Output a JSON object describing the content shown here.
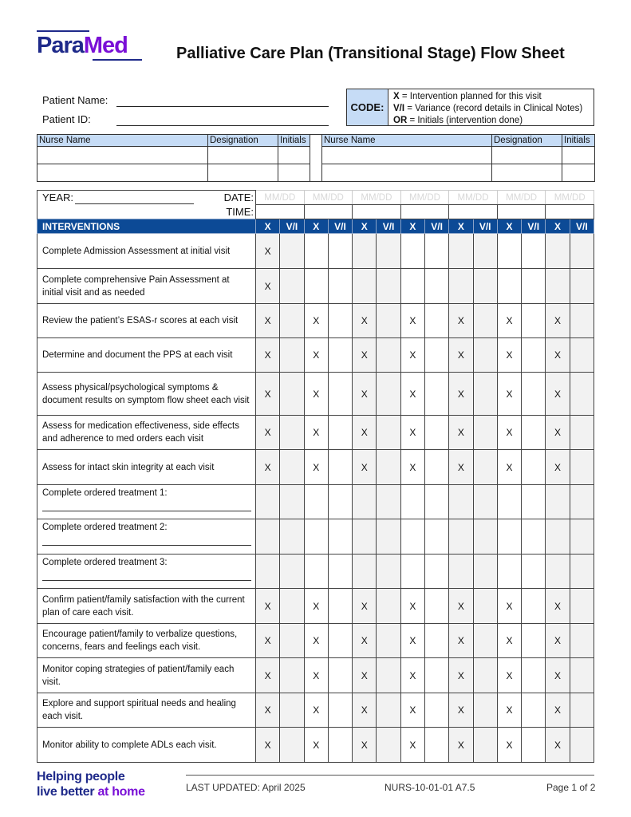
{
  "logo": {
    "part1": "Para",
    "part2": "Med"
  },
  "title": "Palliative Care Plan (Transitional Stage) Flow Sheet",
  "patient": {
    "name_label": "Patient Name:",
    "id_label": "Patient ID:"
  },
  "code": {
    "label": "CODE:",
    "lines": [
      {
        "key": "X",
        "text": " = Intervention planned for this visit"
      },
      {
        "key": "V/I",
        "text": " = Variance (record details in Clinical Notes)"
      },
      {
        "key": "OR",
        "text": " = Initials (intervention done)"
      }
    ]
  },
  "nurse_table": {
    "headers": [
      "Nurse Name",
      "Designation",
      "Initials"
    ]
  },
  "main": {
    "year_label": "YEAR:",
    "date_label": "DATE:",
    "time_label": "TIME:",
    "date_placeholder": "MM/DD",
    "interventions_label": "INTERVENTIONS",
    "col_x": "X",
    "col_vi": "V/I",
    "rows": [
      {
        "text": "Complete Admission Assessment at initial visit",
        "marks": [
          1,
          0,
          0,
          0,
          0,
          0,
          0
        ]
      },
      {
        "text": "Complete comprehensive Pain Assessment at initial visit and as needed",
        "marks": [
          1,
          0,
          0,
          0,
          0,
          0,
          0
        ]
      },
      {
        "text": "Review the patient’s ESAS-r scores at each visit",
        "marks": [
          1,
          1,
          1,
          1,
          1,
          1,
          1
        ]
      },
      {
        "text": "Determine and document the PPS at each visit",
        "marks": [
          1,
          1,
          1,
          1,
          1,
          1,
          1
        ]
      },
      {
        "text": "Assess physical/psychological symptoms & document results on symptom flow sheet each visit",
        "marks": [
          1,
          1,
          1,
          1,
          1,
          1,
          1
        ]
      },
      {
        "text": "Assess for medication effectiveness, side effects and adherence to med orders each visit",
        "marks": [
          1,
          1,
          1,
          1,
          1,
          1,
          1
        ]
      },
      {
        "text": "Assess for intact skin integrity at each visit",
        "marks": [
          1,
          1,
          1,
          1,
          1,
          1,
          1
        ]
      },
      {
        "text": "Complete ordered treatment 1:",
        "marks": [
          0,
          0,
          0,
          0,
          0,
          0,
          0
        ],
        "blank": true
      },
      {
        "text": "Complete ordered treatment 2:",
        "marks": [
          0,
          0,
          0,
          0,
          0,
          0,
          0
        ],
        "blank": true
      },
      {
        "text": "Complete ordered treatment 3:",
        "marks": [
          0,
          0,
          0,
          0,
          0,
          0,
          0
        ],
        "blank": true
      },
      {
        "text": "Confirm patient/family satisfaction with the current plan of care each visit.",
        "marks": [
          1,
          1,
          1,
          1,
          1,
          1,
          1
        ]
      },
      {
        "text": "Encourage patient/family to verbalize questions, concerns, fears and feelings each visit.",
        "marks": [
          1,
          1,
          1,
          1,
          1,
          1,
          1
        ]
      },
      {
        "text": "Monitor coping strategies of patient/family each visit.",
        "marks": [
          1,
          1,
          1,
          1,
          1,
          1,
          1
        ]
      },
      {
        "text": "Explore and support spiritual needs and healing each visit.",
        "marks": [
          1,
          1,
          1,
          1,
          1,
          1,
          1
        ]
      },
      {
        "text": "Monitor ability to complete ADLs each visit.",
        "marks": [
          1,
          1,
          1,
          1,
          1,
          1,
          1
        ]
      }
    ]
  },
  "footer": {
    "tagline1": "Helping people",
    "tagline2a": "live better ",
    "tagline2b": "at home",
    "updated": "LAST UPDATED: April 2025",
    "doc_id": "NURS-10-01-01 A7.5",
    "page": "Page 1 of 2"
  },
  "colors": {
    "brand_navy": "#1f2a8a",
    "brand_purple": "#7a10d6",
    "header_blue": "#0c4a96",
    "light_blue": "#c6dcf6"
  }
}
